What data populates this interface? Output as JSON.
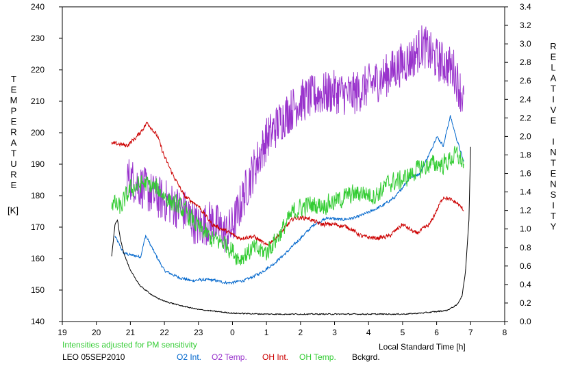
{
  "chart_data": {
    "type": "line",
    "xlabel": "Local Standard Time [h]",
    "x_ticks": [
      "19",
      "20",
      "21",
      "22",
      "23",
      "0",
      "1",
      "2",
      "3",
      "4",
      "5",
      "6",
      "7",
      "8"
    ],
    "xlim": [
      19,
      32
    ],
    "ylabel_left_letters": [
      "T",
      "E",
      "M",
      "P",
      "E",
      "R",
      "A",
      "T",
      "U",
      "R",
      "E"
    ],
    "ylabel_left_unit": "[K]",
    "ylim_left": [
      140,
      240
    ],
    "y_ticks_left": [
      "140",
      "150",
      "160",
      "170",
      "180",
      "190",
      "200",
      "210",
      "220",
      "230",
      "240"
    ],
    "ylabel_right_letters": [
      "R",
      "E",
      "L",
      "A",
      "T",
      "I",
      "V",
      "E",
      "",
      "I",
      "N",
      "T",
      "E",
      "N",
      "S",
      "I",
      "T",
      "Y"
    ],
    "ylim_right": [
      0.0,
      3.4
    ],
    "y_ticks_right": [
      "0.0",
      "0.2",
      "0.4",
      "0.6",
      "0.8",
      "1.0",
      "1.2",
      "1.4",
      "1.6",
      "1.8",
      "2.0",
      "2.2",
      "2.4",
      "2.6",
      "2.8",
      "3.0",
      "3.2",
      "3.4"
    ],
    "grid": false,
    "note": "Intensities adjusted for PM sensitivity",
    "station": "LEO 05SEP2010",
    "series": [
      {
        "name": "O2 Int.",
        "color": "#0066cc",
        "axis": "right",
        "noise": 0.02,
        "x": [
          20.55,
          20.8,
          21.0,
          21.3,
          21.45,
          21.7,
          22.0,
          22.4,
          22.8,
          23.0,
          23.4,
          23.8,
          24.0,
          24.4,
          24.8,
          25.2,
          25.6,
          26.0,
          26.4,
          26.8,
          27.2,
          27.6,
          28.0,
          28.4,
          28.8,
          29.2,
          29.5,
          29.8,
          30.0,
          30.2,
          30.4,
          30.6,
          30.8
        ],
        "y": [
          0.92,
          0.74,
          0.72,
          0.7,
          0.93,
          0.75,
          0.55,
          0.48,
          0.44,
          0.45,
          0.45,
          0.42,
          0.42,
          0.45,
          0.52,
          0.62,
          0.75,
          0.9,
          1.05,
          1.12,
          1.1,
          1.12,
          1.18,
          1.25,
          1.35,
          1.55,
          1.6,
          1.82,
          2.0,
          1.9,
          2.22,
          1.96,
          1.72
        ]
      },
      {
        "name": "O2 Temp.",
        "color": "#9933cc",
        "axis": "left",
        "noise": 7,
        "x": [
          20.9,
          21.3,
          21.7,
          22.1,
          22.6,
          23.0,
          23.4,
          23.8,
          24.0,
          24.5,
          25.0,
          25.5,
          26.0,
          26.5,
          27.0,
          27.5,
          28.0,
          28.5,
          29.0,
          29.3,
          29.6,
          29.9,
          30.2,
          30.5,
          30.8
        ],
        "y": [
          186,
          183,
          180,
          178,
          175,
          170,
          172,
          168,
          170,
          185,
          198,
          205,
          210,
          212,
          213,
          212,
          215,
          218,
          222,
          224,
          228,
          224,
          222,
          220,
          210
        ]
      },
      {
        "name": "OH Int.",
        "color": "#cc0000",
        "axis": "right",
        "noise": 0.03,
        "x": [
          20.45,
          20.65,
          20.9,
          21.2,
          21.5,
          21.8,
          22.0,
          22.3,
          22.6,
          23.0,
          23.4,
          23.8,
          24.2,
          24.6,
          24.8,
          25.0,
          25.4,
          25.8,
          26.2,
          26.6,
          27.0,
          27.4,
          27.8,
          28.2,
          28.6,
          29.0,
          29.4,
          29.8,
          30.2,
          30.6,
          30.8
        ],
        "y": [
          1.92,
          1.92,
          1.9,
          2.0,
          2.15,
          2.0,
          1.78,
          1.55,
          1.35,
          1.25,
          1.05,
          0.98,
          0.9,
          0.92,
          0.88,
          0.82,
          0.95,
          1.12,
          1.12,
          1.05,
          1.05,
          1.02,
          0.92,
          0.9,
          0.92,
          1.05,
          0.95,
          1.05,
          1.35,
          1.28,
          1.2
        ]
      },
      {
        "name": "OH Temp.",
        "color": "#33cc33",
        "axis": "left",
        "noise": 4,
        "x": [
          20.45,
          20.7,
          21.0,
          21.4,
          21.8,
          22.2,
          22.6,
          23.0,
          23.4,
          23.8,
          24.2,
          24.6,
          25.0,
          25.4,
          25.8,
          26.2,
          26.6,
          27.0,
          27.4,
          27.8,
          28.2,
          28.6,
          29.0,
          29.4,
          29.8,
          30.2,
          30.6,
          30.8
        ],
        "y": [
          178,
          176,
          182,
          184,
          182,
          178,
          175,
          170,
          166,
          165,
          160,
          163,
          162,
          168,
          175,
          177,
          177,
          178,
          180,
          181,
          180,
          184,
          185,
          188,
          190,
          190,
          193,
          190
        ]
      },
      {
        "name": "Bckgrd.",
        "color": "#000000",
        "axis": "right",
        "noise": 0.008,
        "x": [
          20.45,
          20.55,
          20.62,
          20.7,
          20.8,
          21.0,
          21.3,
          21.7,
          22.0,
          22.5,
          23.0,
          23.5,
          24.0,
          25.0,
          26.0,
          27.0,
          28.0,
          29.0,
          29.5,
          29.8,
          30.3,
          30.6,
          30.75,
          30.85,
          30.95,
          31.0
        ],
        "y": [
          0.7,
          1.05,
          1.1,
          0.9,
          0.75,
          0.55,
          0.38,
          0.27,
          0.22,
          0.17,
          0.13,
          0.11,
          0.09,
          0.08,
          0.08,
          0.08,
          0.08,
          0.08,
          0.09,
          0.1,
          0.12,
          0.18,
          0.28,
          0.55,
          1.1,
          1.92
        ]
      }
    ]
  }
}
